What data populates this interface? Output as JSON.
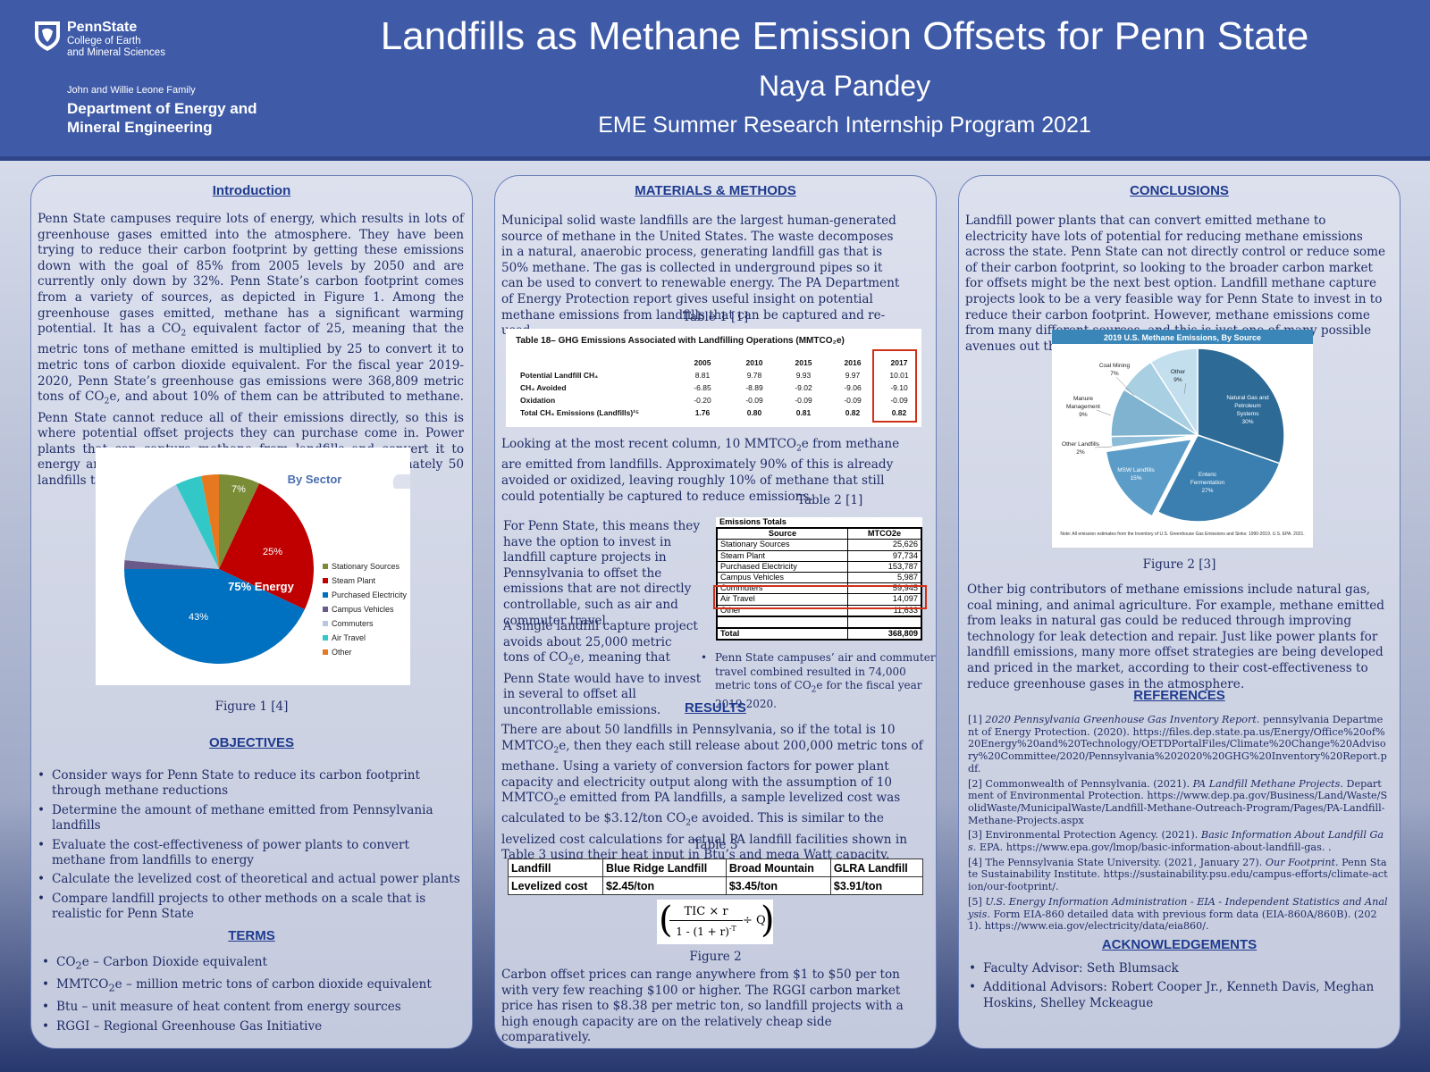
{
  "header": {
    "logo": {
      "name": "PennState",
      "line1": "College of Earth",
      "line2": "and Mineral Sciences"
    },
    "dept": {
      "line1": "John and Willie Leone Family",
      "line2": "Department of Energy and",
      "line3": "Mineral Engineering"
    },
    "title": "Landfills as Methane Emission Offsets for Penn State",
    "author": "Naya Pandey",
    "program": "EME Summer Research Internship Program 2021"
  },
  "colors": {
    "header_blue": "#3f5ba8",
    "heading_blue": "#1f3b8f",
    "text_navy": "#1f2d66",
    "highlight_red": "#d03018"
  },
  "introduction": {
    "heading": "Introduction",
    "p1": "Penn State campuses require lots of energy, which results in lots of greenhouse gases emitted into the atmosphere. They have been trying to reduce their carbon footprint by getting these emissions down with the goal of 85% from 2005 levels by 2050 and are currently only down by 32%. Penn State’s carbon footprint comes from a variety of sources, as depicted in Figure 1. Among the greenhouse gases emitted, methane has a significant warming potential. It has a ",
    "co2": "CO",
    "sub2": "2",
    "p2": " equivalent factor of 25, meaning that the metric tons of methane emitted is multiplied by 25 to convert it to metric tons of carbon dioxide equivalent. For the fiscal year 2019-2020, Penn State’s greenhouse gas emissions were 368,809 metric tons of ",
    "p3": "e, and about 10% of them can be attributed to methane. Penn State cannot reduce all of their emissions directly, so this is where potential offset projects they can purchase come in. Power plants that can capture methane from landfills and convert it to energy are an option, considering that there are approximately 50 landfills throughout Pennsylvania emitting methane."
  },
  "figure1": {
    "caption": "Figure 1 [4]",
    "chart_title": "By Sector",
    "center_label": "75% Energy",
    "legend": [
      "Stationary Sources",
      "Steam Plant",
      "Purchased Electricity",
      "Campus Vehicles",
      "Commuters",
      "Air Travel",
      "Other"
    ],
    "colors": [
      "#7a8c36",
      "#c00000",
      "#0070c0",
      "#6a5a8a",
      "#b8c8e0",
      "#33c8c8",
      "#e67820"
    ],
    "labels": {
      "stationary": "7%",
      "steam": "25%",
      "purchased": "43%"
    }
  },
  "chart_data": {
    "type": "pie",
    "title": "By Sector",
    "categories": [
      "Stationary Sources",
      "Steam Plant",
      "Purchased Electricity",
      "Campus Vehicles",
      "Commuters",
      "Air Travel",
      "Other"
    ],
    "values": [
      7,
      25,
      43,
      1.5,
      16,
      4.5,
      3
    ],
    "data_labels": [
      "7%",
      "25%",
      "43%",
      "",
      "",
      "",
      ""
    ],
    "annotation": "75% Energy",
    "legend_position": "right"
  },
  "objectives": {
    "heading": "OBJECTIVES",
    "items": [
      "Consider ways for Penn State to reduce its carbon footprint  through methane reductions",
      "Determine the amount of methane emitted from Pennsylvania landfills",
      "Evaluate the cost-effectiveness of power plants to convert methane from landfills to energy",
      "Calculate the levelized cost of theoretical and actual power plants",
      "Compare landfill projects to other methods on a scale that is realistic for Penn State"
    ]
  },
  "terms": {
    "heading": "TERMS",
    "t1a": "CO",
    "t1b": "2",
    "t1c": "e – Carbon Dioxide equivalent",
    "t2a": "MMTCO",
    "t2b": "2",
    "t2c": "e – million metric tons of carbon dioxide equivalent",
    "t3": "Btu – unit measure of heat content from energy sources",
    "t4": "RGGI – Regional Greenhouse Gas Initiative"
  },
  "methods": {
    "heading": "MATERIALS & METHODS",
    "p1": "Municipal solid waste landfills are the largest human-generated source of methane in the United States. The waste decomposes in a natural, anaerobic process, generating landfill gas that is 50% methane. The gas is collected in underground pipes so it can be used to convert to renewable energy. The PA Department of Energy Protection report gives useful insight on potential methane emissions from landfills that can be captured and re-used.",
    "table1_caption": "Table 1 [1]",
    "table18": {
      "title": "Table 18– GHG Emissions Associated with Landfilling Operations (MMTCO₂e)",
      "years": [
        "2005",
        "2010",
        "2015",
        "2016",
        "2017"
      ],
      "rows": [
        {
          "label": "Potential Landfill CH₄",
          "values": [
            "8.81",
            "9.78",
            "9.93",
            "9.97",
            "10.01"
          ]
        },
        {
          "label": "CH₄ Avoided",
          "values": [
            "-6.85",
            "-8.89",
            "-9.02",
            "-9.06",
            "-9.10"
          ]
        },
        {
          "label": "Oxidation",
          "values": [
            "-0.20",
            "-0.09",
            "-0.09",
            "-0.09",
            "-0.09"
          ]
        },
        {
          "label": "Total CH₄ Emissions (Landfills)¹⁵",
          "values": [
            "1.76",
            "0.80",
            "0.81",
            "0.82",
            "0.82"
          ]
        }
      ]
    },
    "p2a": "Looking at the most recent column, 10 MMTCO",
    "p2b": "2",
    "p2c": "e from methane are emitted from landfills. Approximately 90% of this is already avoided or oxidized, leaving roughly 10% of methane that still could potentially be captured to reduce emissions.",
    "table2_caption": "Table 2 [1]",
    "p3": "For Penn State, this means they have the option to invest in landfill capture projects in Pennsylvania to offset the emissions that are not directly controllable, such as air and commuter travel.",
    "p4a": "A single landfill capture project avoids about 25,000 metric tons of ",
    "p4b": "CO",
    "p4c": "2",
    "p4d": "e, meaning that Penn State would have to invest in several to offset all uncontrollable emissions.",
    "table2": {
      "title": "Emissions Totals",
      "col1": "Source",
      "col2": "MTCO2e",
      "rows": [
        [
          "Stationary Sources",
          "25,626"
        ],
        [
          "Steam Plant",
          "97,734"
        ],
        [
          "Purchased Electricity",
          "153,787"
        ],
        [
          "Campus Vehicles",
          "5,987"
        ],
        [
          "Commuters",
          "59,945"
        ],
        [
          "Air Travel",
          "14,097"
        ],
        [
          "Other",
          "11,633"
        ]
      ],
      "total_label": "Total",
      "total_value": "368,809"
    },
    "note_a": "Penn State campuses’ air and commuter travel combined resulted in 74,000 metric tons of CO",
    "note_b": "2",
    "note_c": "e for the fiscal year 2019-2020."
  },
  "results": {
    "heading": "RESULTS",
    "p1a": "There are about 50 landfills in Pennsylvania, so if the total is 10 MMTCO",
    "p1b": "2",
    "p1c": "e, then they each still release about 200,000 metric tons of methane.  Using a variety of conversion factors for power plant capacity and electricity output along with the assumption of 10 MMTCO",
    "p1d": "2",
    "p1e": "e emitted from PA landfills, a sample levelized cost was calculated to be $3.12/ton CO",
    "p1f": "2",
    "p1g": "e avoided. This is similar to the levelized cost calculations for actual PA landfill facilities shown in Table 3 using their heat input in Btu’s and mega Watt capacity.",
    "table3_caption": "Table 3",
    "table3": {
      "header": [
        "Landfill",
        "Blue Ridge Landfill",
        "Broad Mountain",
        "GLRA Landfill"
      ],
      "row": [
        "Levelized cost",
        "$2.45/ton",
        "$3.45/ton",
        "$3.91/ton"
      ]
    },
    "formula": {
      "numerator": "TIC × r",
      "denominator": "1 - (1 + r)",
      "exponent": "-T",
      "divisor": "÷ Q"
    },
    "figure2_caption": "Figure 2",
    "p2": "Carbon offset prices can range anywhere from $1 to $50 per ton with very few reaching $100 or higher.  The RGGI carbon market price has risen to $8.38 per metric ton, so landfill projects with a high enough capacity are on the relatively cheap side comparatively."
  },
  "conclusions": {
    "heading": "CONCLUSIONS",
    "p1": "Landfill power plants that can convert emitted methane to electricity have lots of potential for reducing methane emissions across the state. Penn State can not directly control or reduce some of their carbon footprint, so looking to the broader carbon market for offsets might be the next best option. Landfill methane capture projects look to be a very feasible way for Penn State to invest in to reduce their carbon footprint. However, methane emissions come from many different sources, and this is just one of many possible avenues out there.",
    "fig2_title": "2019 U.S. Methane Emissions, By Source",
    "fig2_labels": {
      "ng1": "Natural Gas and",
      "ng2": "Petroleum",
      "ng3": "Systems",
      "ng4": "30%",
      "ef1": "Enteric",
      "ef2": "Fermentation",
      "ef3": "27%",
      "msw1": "MSW Landfills",
      "msw2": "15%",
      "ol1": "Other Landfills",
      "ol2": "2%",
      "mm1": "Manure",
      "mm2": "Management",
      "mm3": "9%",
      "cm1": "Coal Mining",
      "cm2": "7%",
      "ot1": "Other",
      "ot2": "9%"
    },
    "fig2_note": "Note: All emission estimates from the Inventory of U.S. Greenhouse Gas Emissions and Sinks: 1990-2019. U.S. EPA. 2021.",
    "fig2_values": [
      30,
      27,
      15,
      2,
      9,
      7,
      9
    ],
    "fig2_colors": [
      "#2d6a96",
      "#3a7fb0",
      "#5b9cc8",
      "#8dbcd8",
      "#7fb3d0",
      "#a9cfe3",
      "#c3dfee"
    ],
    "figure2_caption": "Figure 2 [3]",
    "p2": "Other big contributors of methane emissions include natural gas, coal mining, and animal agriculture. For example, methane emitted from leaks in natural gas could be reduced through improving technology for leak detection and repair. Just like power plants for landfill emissions, many more offset strategies are being developed and priced in the market, according to their cost-effectiveness to reduce greenhouse gases in the atmosphere."
  },
  "references": {
    "heading": "REFERENCES",
    "r1a": "[1] ",
    "r1b": "2020 Pennsylvania Greenhouse Gas Inventory Report",
    "r1c": ". pennsylvania Department of Energy Protection. (2020). https://files.dep.state.pa.us/Energy/Office%20of%20Energy%20and%20Technology/OETDPortalFiles/Climate%20Change%20Advisory%20Committee/2020/Pennsylvania%202020%20GHG%20Inventory%20Report.pdf.",
    "r2a": "[2] Commonwealth of Pennsylvania. (2021). ",
    "r2b": "PA Landfill Methane Projects",
    "r2c": ". Department of Environmental Protection. https://www.dep.pa.gov/Business/Land/Waste/SolidWaste/MunicipalWaste/Landfill-Methane-Outreach-Program/Pages/PA-Landfill-Methane-Projects.aspx",
    "r3a": "[3] Environmental Protection Agency. (2021). ",
    "r3b": "Basic Information About Landfill Gas",
    "r3c": ". EPA. https://www.epa.gov/lmop/basic-information-about-landfill-gas. .",
    "r4a": "[4] The Pennsylvania State University. (2021, January 27). ",
    "r4b": "Our Footprint",
    "r4c": ". Penn State Sustainability Institute. https://sustainability.psu.edu/campus-efforts/climate-action/our-footprint/.",
    "r5a": "[5] ",
    "r5b": "U.S. Energy Information Administration - EIA - Independent Statistics and Analysis",
    "r5c": ". Form EIA-860 detailed data with previous form data (EIA-860A/860B). (2021). https://www.eia.gov/electricity/data/eia860/."
  },
  "acknowledgements": {
    "heading": "ACKNOWLEDGEMENTS",
    "items": [
      "Faculty Advisor: Seth Blumsack",
      "Additional Advisors: Robert Cooper Jr., Kenneth Davis, Meghan Hoskins, Shelley Mckeague"
    ]
  }
}
